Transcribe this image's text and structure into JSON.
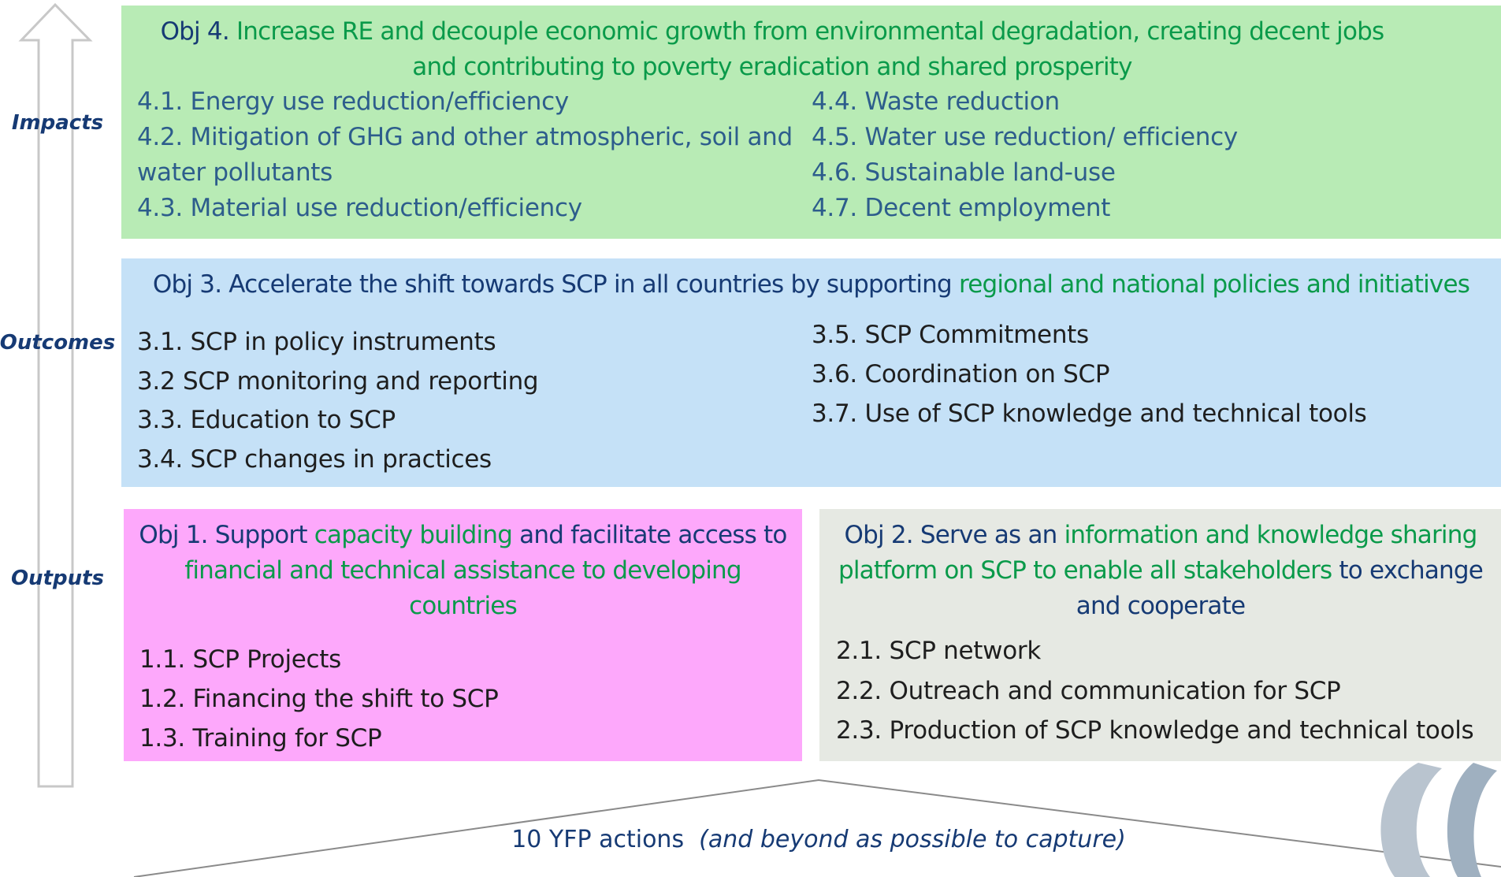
{
  "levels": [
    "Impacts",
    "Outcomes",
    "Outputs"
  ],
  "objectives": [
    {
      "title": [
        "Obj 4. ",
        "Increase RE and decouple economic growth from environmental degradation, creating decent jobs and contributing to poverty eradication and shared prosperity"
      ],
      "items": [
        "4.1. Energy use reduction/efficiency",
        "4.2. Mitigation of GHG and other atmospheric, soil and water pollutants",
        "4.3. Material use reduction/efficiency",
        "4.4. Waste reduction",
        "4.5. Water use reduction/ efficiency",
        "4.6. Sustainable land-use",
        "4.7. Decent employment"
      ]
    },
    {
      "title": [
        "Obj 3. Accelerate the shift towards SCP in all countries by supporting ",
        "regional and national policies and initiatives"
      ],
      "items": [
        "3.1. SCP in policy instruments",
        "3.2 SCP monitoring and reporting",
        "3.3. Education to SCP",
        "3.4. SCP changes in practices",
        "3.5. SCP Commitments",
        "3.6. Coordination on SCP",
        "3.7. Use of SCP knowledge and technical tools"
      ]
    },
    {
      "title": [
        "Obj 1. Support ",
        "capacity building",
        " and facilitate access to ",
        "financial and technical assistance to developing countries"
      ],
      "items": [
        "1.1. SCP Projects",
        "1.2. Financing the shift to SCP",
        "1.3. Training for SCP"
      ]
    },
    {
      "title": [
        "Obj 2. Serve as an ",
        "information and knowledge sharing platform on SCP to enable all stakeholders",
        " to exchange and cooperate"
      ],
      "items": [
        "2.1. SCP network",
        "2.2. Outreach and communication for SCP",
        "2.3. Production of SCP knowledge and technical tools"
      ]
    }
  ],
  "footer": [
    "10 YFP actions",
    "(and beyond as possible to capture)"
  ]
}
